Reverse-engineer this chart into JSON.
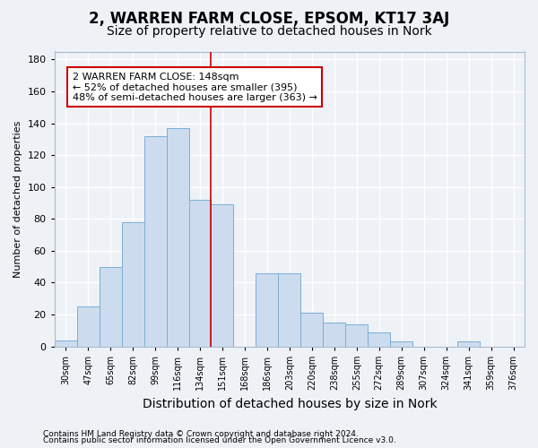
{
  "title": "2, WARREN FARM CLOSE, EPSOM, KT17 3AJ",
  "subtitle": "Size of property relative to detached houses in Nork",
  "xlabel": "Distribution of detached houses by size in Nork",
  "ylabel": "Number of detached properties",
  "categories": [
    "30sqm",
    "47sqm",
    "65sqm",
    "82sqm",
    "99sqm",
    "116sqm",
    "134sqm",
    "151sqm",
    "168sqm",
    "186sqm",
    "203sqm",
    "220sqm",
    "238sqm",
    "255sqm",
    "272sqm",
    "289sqm",
    "307sqm",
    "324sqm",
    "341sqm",
    "359sqm",
    "376sqm"
  ],
  "values": [
    4,
    25,
    50,
    78,
    132,
    137,
    92,
    89,
    0,
    46,
    46,
    21,
    15,
    14,
    9,
    3,
    0,
    0,
    3,
    0,
    0
  ],
  "bar_color": "#ccdcee",
  "bar_edge_color": "#7aaed6",
  "vline_color": "#cc0000",
  "vline_pos": 7,
  "annotation_text": "2 WARREN FARM CLOSE: 148sqm\n← 52% of detached houses are smaller (395)\n48% of semi-detached houses are larger (363) →",
  "annotation_box_facecolor": "#ffffff",
  "annotation_box_edgecolor": "#cc0000",
  "ylim": [
    0,
    185
  ],
  "yticks": [
    0,
    20,
    40,
    60,
    80,
    100,
    120,
    140,
    160,
    180
  ],
  "footer1": "Contains HM Land Registry data © Crown copyright and database right 2024.",
  "footer2": "Contains public sector information licensed under the Open Government Licence v3.0.",
  "bg_color": "#eef2f7",
  "title_fontsize": 12,
  "subtitle_fontsize": 10,
  "xlabel_fontsize": 10,
  "ylabel_fontsize": 8,
  "tick_fontsize": 7,
  "annotation_fontsize": 8,
  "footer_fontsize": 6.5
}
